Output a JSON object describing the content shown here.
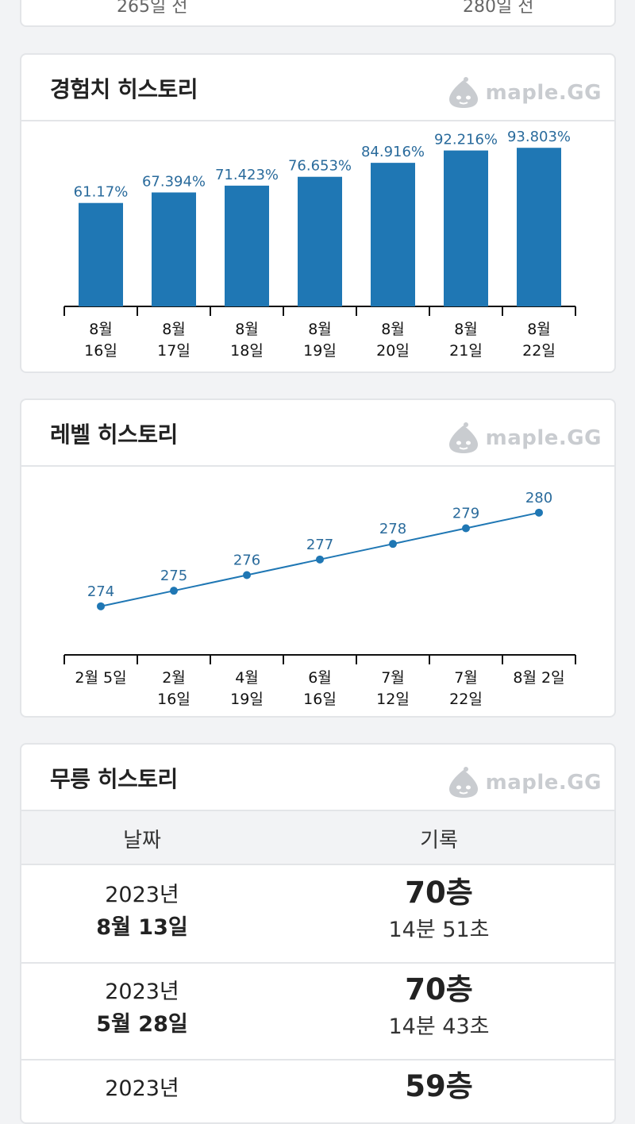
{
  "top_card": {
    "left_text": "265일 전",
    "right_text": "280일 전"
  },
  "logo_text": "maple.GG",
  "exp_history": {
    "title": "경험치 히스토리",
    "chart_data": {
      "type": "bar",
      "categories": [
        [
          "8월",
          "16일"
        ],
        [
          "8월",
          "17일"
        ],
        [
          "8월",
          "18일"
        ],
        [
          "8월",
          "19일"
        ],
        [
          "8월",
          "20일"
        ],
        [
          "8월",
          "21일"
        ],
        [
          "8월",
          "22일"
        ]
      ],
      "values": [
        61.17,
        67.394,
        71.423,
        76.653,
        84.916,
        92.216,
        93.803
      ],
      "labels": [
        "61.17%",
        "67.394%",
        "71.423%",
        "76.653%",
        "84.916%",
        "92.216%",
        "93.803%"
      ],
      "color": "#1f77b4"
    }
  },
  "level_history": {
    "title": "레벨 히스토리",
    "chart_data": {
      "type": "line",
      "categories": [
        [
          "2월 5일"
        ],
        [
          "2월",
          "16일"
        ],
        [
          "4월",
          "19일"
        ],
        [
          "6월",
          "16일"
        ],
        [
          "7월",
          "12일"
        ],
        [
          "7월",
          "22일"
        ],
        [
          "8월 2일"
        ]
      ],
      "values": [
        274,
        275,
        276,
        277,
        278,
        279,
        280
      ],
      "color": "#1f77b4"
    }
  },
  "tower_history": {
    "title": "무릉 히스토리",
    "columns": [
      "날짜",
      "기록"
    ],
    "rows": [
      {
        "year": "2023년",
        "date": "8월 13일",
        "floor": "70층",
        "time": "14분 51초"
      },
      {
        "year": "2023년",
        "date": "5월 28일",
        "floor": "70층",
        "time": "14분 43초"
      },
      {
        "year": "2023년",
        "date": "",
        "floor": "59층",
        "time": ""
      }
    ]
  }
}
